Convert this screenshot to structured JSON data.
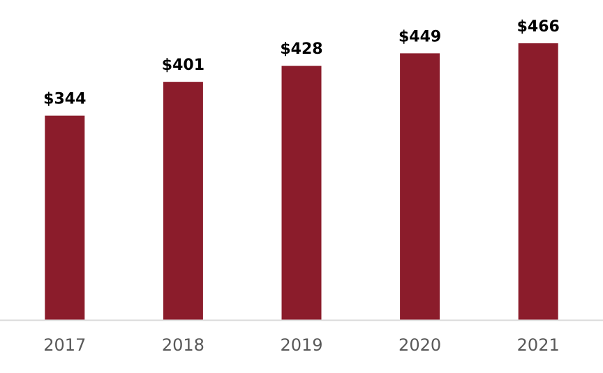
{
  "chart_data": {
    "type": "bar",
    "categories": [
      "2017",
      "2018",
      "2019",
      "2020",
      "2021"
    ],
    "values": [
      344,
      401,
      428,
      449,
      466
    ],
    "data_labels": [
      "$344",
      "$401",
      "$428",
      "$449",
      "$466"
    ],
    "title": "",
    "xlabel": "",
    "ylabel": "",
    "ylim": [
      0,
      500
    ],
    "grid": false,
    "legend": "none",
    "bar_color": "#8B1C2B",
    "axis_color": "#D9D9D9"
  }
}
